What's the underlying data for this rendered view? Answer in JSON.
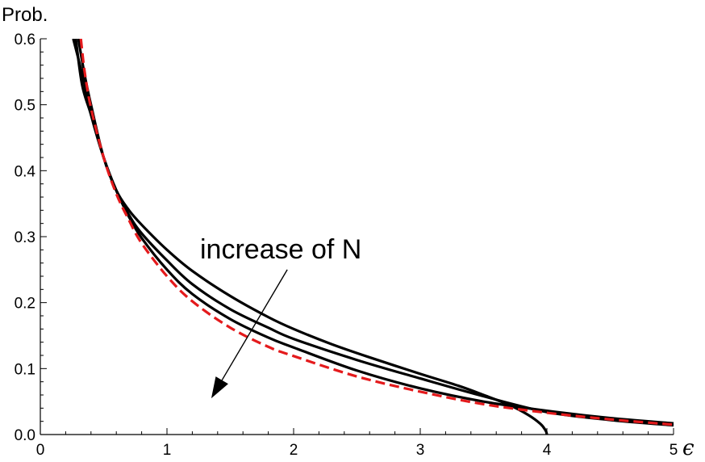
{
  "chart_data": {
    "type": "line",
    "title": "",
    "xlabel": "ϵ",
    "ylabel": "Prob.",
    "xlim": [
      0,
      5
    ],
    "ylim": [
      0,
      0.6
    ],
    "x_ticks": [
      "0",
      "1",
      "2",
      "3",
      "4",
      "5"
    ],
    "y_ticks": [
      "0.0",
      "0.1",
      "0.2",
      "0.3",
      "0.4",
      "0.5",
      "0.6"
    ],
    "grid": false,
    "legend": "none",
    "annotation": {
      "text": "increase of N",
      "arrow_from": [
        1.95,
        0.25
      ],
      "arrow_to": [
        1.35,
        0.055
      ]
    },
    "series": [
      {
        "style": "solid",
        "color": "#000000",
        "x": [
          0.3,
          0.35,
          0.4,
          0.5,
          0.6,
          0.7,
          0.8,
          1.0,
          1.2,
          1.5,
          1.8,
          2.0,
          2.3,
          2.6,
          3.0,
          3.3,
          3.5,
          3.7,
          3.85,
          3.95,
          3.99,
          4.0
        ],
        "y": [
          0.6,
          0.545,
          0.5,
          0.42,
          0.37,
          0.34,
          0.318,
          0.28,
          0.248,
          0.21,
          0.178,
          0.16,
          0.137,
          0.117,
          0.092,
          0.074,
          0.06,
          0.045,
          0.03,
          0.016,
          0.006,
          0.0
        ]
      },
      {
        "style": "solid",
        "color": "#000000",
        "x": [
          0.28,
          0.33,
          0.4,
          0.5,
          0.6,
          0.7,
          0.8,
          1.0,
          1.2,
          1.5,
          1.8,
          2.0,
          2.5,
          3.0,
          3.5,
          4.0,
          4.5,
          5.0
        ],
        "y": [
          0.6,
          0.53,
          0.485,
          0.42,
          0.37,
          0.333,
          0.305,
          0.264,
          0.228,
          0.19,
          0.162,
          0.145,
          0.113,
          0.085,
          0.058,
          0.034,
          0.022,
          0.014
        ]
      },
      {
        "style": "solid",
        "color": "#000000",
        "x": [
          0.26,
          0.3,
          0.35,
          0.4,
          0.5,
          0.6,
          0.7,
          0.8,
          1.0,
          1.2,
          1.5,
          1.8,
          2.0,
          2.5,
          3.0,
          3.5,
          4.0,
          4.5,
          5.0
        ],
        "y": [
          0.6,
          0.57,
          0.53,
          0.485,
          0.42,
          0.37,
          0.33,
          0.298,
          0.25,
          0.213,
          0.175,
          0.147,
          0.132,
          0.097,
          0.07,
          0.05,
          0.036,
          0.025,
          0.017
        ]
      },
      {
        "style": "dashed",
        "color": "#e41a1c",
        "x": [
          0.32,
          0.35,
          0.4,
          0.5,
          0.6,
          0.7,
          0.8,
          1.0,
          1.2,
          1.5,
          1.8,
          2.0,
          2.5,
          3.0,
          3.5,
          4.0,
          4.5,
          5.0
        ],
        "y": [
          0.6,
          0.55,
          0.495,
          0.42,
          0.365,
          0.325,
          0.29,
          0.24,
          0.202,
          0.162,
          0.133,
          0.119,
          0.088,
          0.065,
          0.046,
          0.033,
          0.023,
          0.015
        ]
      }
    ]
  }
}
